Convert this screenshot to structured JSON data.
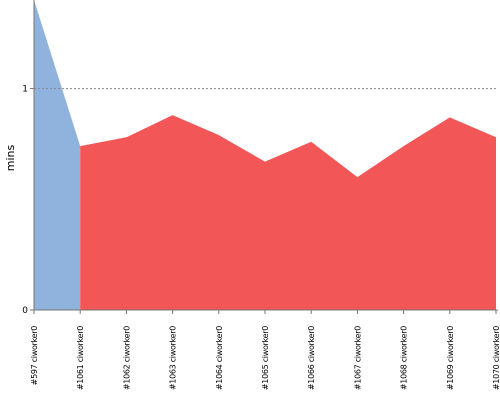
{
  "chart_data": {
    "type": "area",
    "ylabel": "mins",
    "ylim": [
      0,
      1.4
    ],
    "yticks": [
      0,
      1
    ],
    "gridline_y": 1,
    "categories": [
      "#597 ciworker0",
      "#1061 ciworker0",
      "#1062 ciworker0",
      "#1063 ciworker0",
      "#1064 ciworker0",
      "#1065 ciworker0",
      "#1066 ciworker0",
      "#1067 ciworker0",
      "#1068 ciworker0",
      "#1069 ciworker0",
      "#1070 ciworker0"
    ],
    "values": [
      1.4,
      0.74,
      0.78,
      0.88,
      0.79,
      0.67,
      0.76,
      0.6,
      0.74,
      0.87,
      0.78
    ],
    "segments": [
      {
        "from": 0,
        "to": 1,
        "color": "#8fb3dd"
      },
      {
        "from": 1,
        "to": 10,
        "color": "#f25656"
      }
    ],
    "colors": {
      "gridline": "#888888",
      "axis": "#777777"
    }
  }
}
